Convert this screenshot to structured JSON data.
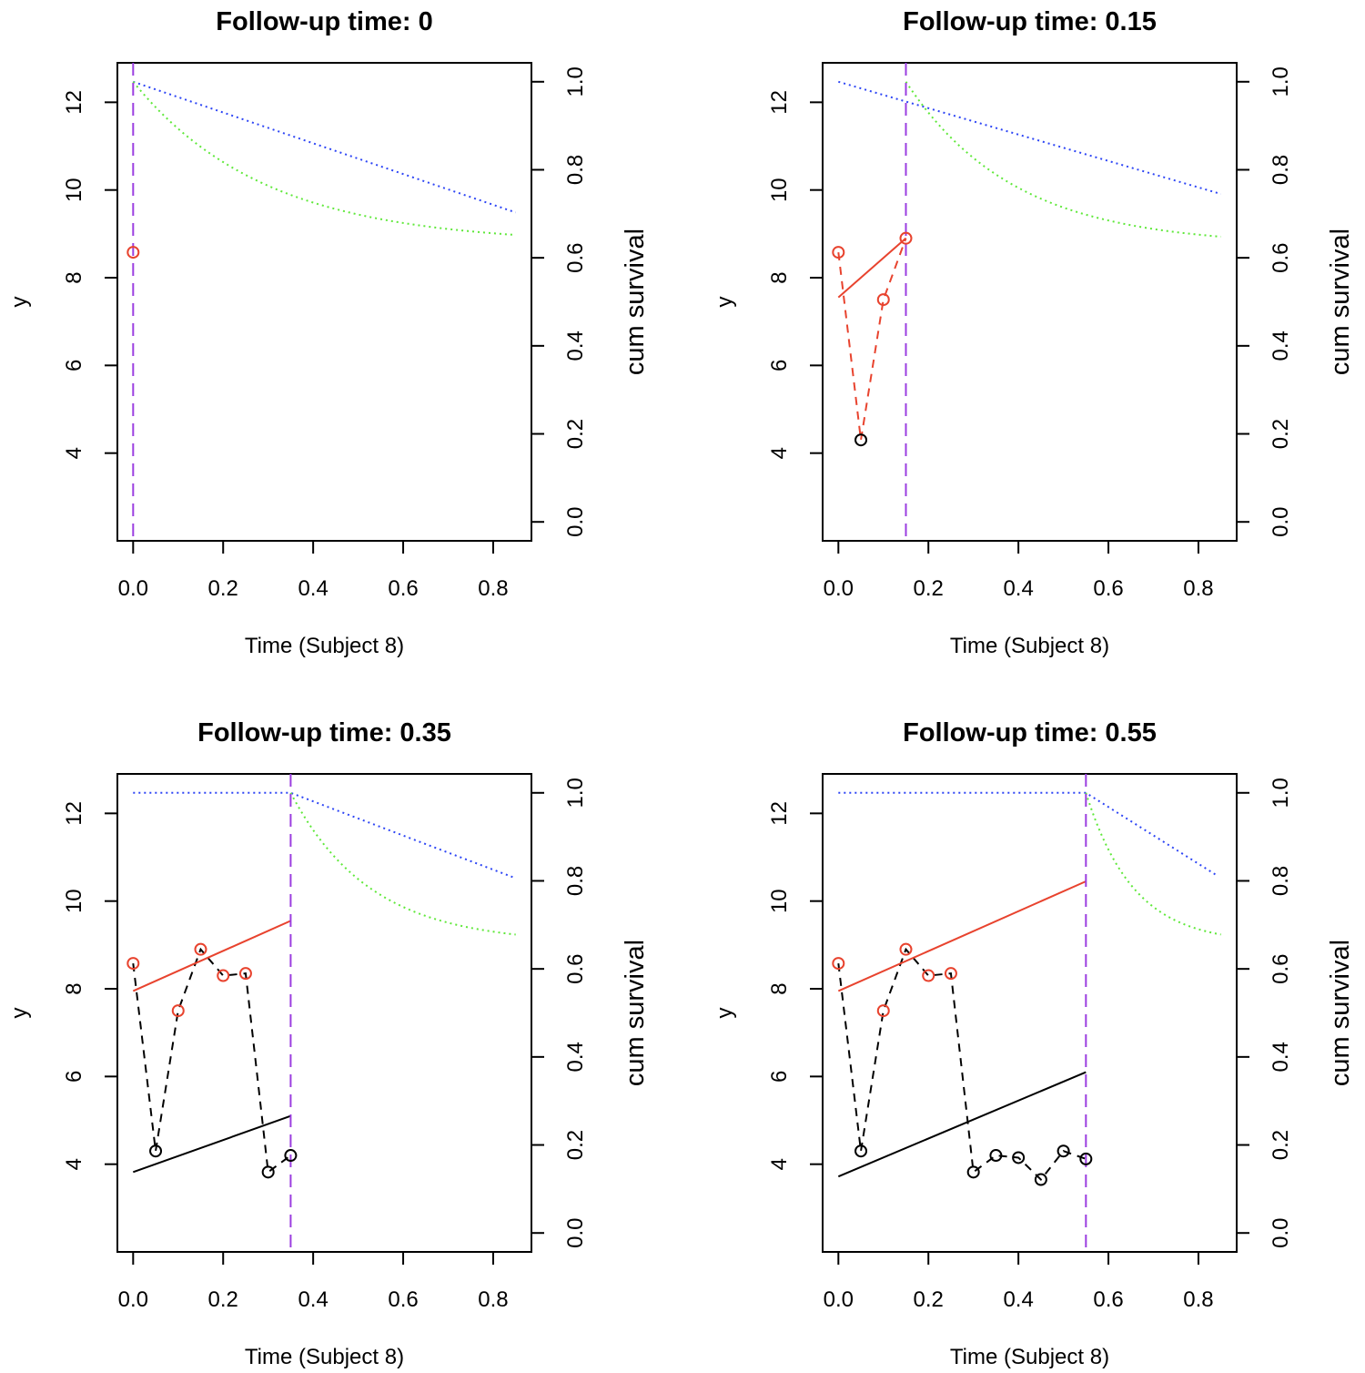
{
  "chart_data": [
    {
      "type": "line",
      "title": "Follow-up time: 0",
      "xlabel": "Time (Subject 8)",
      "ylabel": "y",
      "y2label": "cum survival",
      "xlim": [
        -0.035,
        0.885
      ],
      "ylim": [
        2.0,
        12.9
      ],
      "y2lim": [
        -0.043,
        1.043
      ],
      "xticks": [
        "0.0",
        "0.2",
        "0.4",
        "0.6",
        "0.8"
      ],
      "yticks": [
        "4",
        "6",
        "8",
        "10",
        "12"
      ],
      "y2ticks": [
        "0.0",
        "0.2",
        "0.4",
        "0.6",
        "0.8",
        "1.0"
      ],
      "followup_time": 0,
      "colors": {
        "observed": "#e8432e",
        "earlier": "#000000",
        "survival_upper": "#2d45f5",
        "survival_lower": "#5fe83a",
        "followup": "#9b3ee0"
      },
      "observed_points": {
        "x": [
          0.0
        ],
        "y": [
          8.58
        ]
      },
      "earlier_points": {
        "x": [],
        "y": []
      },
      "observed_fit": null,
      "earlier_fit": null,
      "survival_upper": {
        "x": [
          0.0,
          0.85
        ],
        "y": [
          1.0,
          0.703
        ]
      },
      "survival_lower": {
        "x": [
          0.0,
          0.85
        ],
        "y": [
          1.0,
          0.652
        ],
        "shape": "exp-decay"
      }
    },
    {
      "type": "line",
      "title": "Follow-up time: 0.15",
      "xlabel": "Time (Subject 8)",
      "ylabel": "y",
      "y2label": "cum survival",
      "xlim": [
        -0.035,
        0.885
      ],
      "ylim": [
        2.0,
        12.9
      ],
      "y2lim": [
        -0.043,
        1.043
      ],
      "xticks": [
        "0.0",
        "0.2",
        "0.4",
        "0.6",
        "0.8"
      ],
      "yticks": [
        "4",
        "6",
        "8",
        "10",
        "12"
      ],
      "y2ticks": [
        "0.0",
        "0.2",
        "0.4",
        "0.6",
        "0.8",
        "1.0"
      ],
      "followup_time": 0.15,
      "colors": {
        "observed": "#e8432e",
        "earlier": "#000000",
        "survival_upper": "#2d45f5",
        "survival_lower": "#5fe83a",
        "followup": "#9b3ee0"
      },
      "observed_points": {
        "x": [
          0.0,
          0.1,
          0.15
        ],
        "y": [
          8.58,
          7.5,
          8.9
        ]
      },
      "earlier_points": {
        "x": [
          0.05
        ],
        "y": [
          4.3
        ]
      },
      "observed_path": {
        "x": [
          0.0,
          0.05,
          0.1,
          0.15
        ],
        "y": [
          8.58,
          4.3,
          7.5,
          8.9
        ]
      },
      "observed_fit": {
        "x": [
          0.0,
          0.15
        ],
        "y": [
          7.55,
          8.9
        ]
      },
      "earlier_fit": null,
      "survival_upper": {
        "x": [
          0.0,
          0.85
        ],
        "y": [
          1.0,
          0.745
        ]
      },
      "survival_lower": {
        "x": [
          0.15,
          0.85
        ],
        "y": [
          1.0,
          0.648
        ],
        "shape": "exp-decay"
      }
    },
    {
      "type": "line",
      "title": "Follow-up time: 0.35",
      "xlabel": "Time (Subject 8)",
      "ylabel": "y",
      "y2label": "cum survival",
      "xlim": [
        -0.035,
        0.885
      ],
      "ylim": [
        2.0,
        12.9
      ],
      "y2lim": [
        -0.043,
        1.043
      ],
      "xticks": [
        "0.0",
        "0.2",
        "0.4",
        "0.6",
        "0.8"
      ],
      "yticks": [
        "4",
        "6",
        "8",
        "10",
        "12"
      ],
      "y2ticks": [
        "0.0",
        "0.2",
        "0.4",
        "0.6",
        "0.8",
        "1.0"
      ],
      "followup_time": 0.35,
      "colors": {
        "observed": "#e8432e",
        "earlier": "#000000",
        "survival_upper": "#2d45f5",
        "survival_lower": "#5fe83a",
        "followup": "#9b3ee0"
      },
      "observed_points": {
        "x": [
          0.0,
          0.1,
          0.15,
          0.2,
          0.25
        ],
        "y": [
          8.58,
          7.5,
          8.9,
          8.3,
          8.35
        ]
      },
      "earlier_points": {
        "x": [
          0.05,
          0.3,
          0.35
        ],
        "y": [
          4.3,
          3.82,
          4.2
        ]
      },
      "observed_path": {
        "x": [
          0.0,
          0.05,
          0.1,
          0.15,
          0.2,
          0.25,
          0.3,
          0.35
        ],
        "y": [
          8.58,
          4.3,
          7.5,
          8.9,
          8.3,
          8.35,
          3.82,
          4.2
        ]
      },
      "observed_fit": {
        "x": [
          0.0,
          0.35
        ],
        "y": [
          7.95,
          9.55
        ]
      },
      "earlier_fit": {
        "x": [
          0.0,
          0.35
        ],
        "y": [
          3.82,
          5.1
        ]
      },
      "survival_upper": {
        "x": [
          0.0,
          0.35,
          0.85
        ],
        "y": [
          1.0,
          1.0,
          0.806
        ]
      },
      "survival_lower": {
        "x": [
          0.35,
          0.85
        ],
        "y": [
          1.0,
          0.678
        ],
        "shape": "exp-decay"
      }
    },
    {
      "type": "line",
      "title": "Follow-up time: 0.55",
      "xlabel": "Time (Subject 8)",
      "ylabel": "y",
      "y2label": "cum survival",
      "xlim": [
        -0.035,
        0.885
      ],
      "ylim": [
        2.0,
        12.9
      ],
      "y2lim": [
        -0.043,
        1.043
      ],
      "xticks": [
        "0.0",
        "0.2",
        "0.4",
        "0.6",
        "0.8"
      ],
      "yticks": [
        "4",
        "6",
        "8",
        "10",
        "12"
      ],
      "y2ticks": [
        "0.0",
        "0.2",
        "0.4",
        "0.6",
        "0.8",
        "1.0"
      ],
      "followup_time": 0.55,
      "colors": {
        "observed": "#e8432e",
        "earlier": "#000000",
        "survival_upper": "#2d45f5",
        "survival_lower": "#5fe83a",
        "followup": "#9b3ee0"
      },
      "observed_points": {
        "x": [
          0.0,
          0.1,
          0.15,
          0.2,
          0.25
        ],
        "y": [
          8.58,
          7.5,
          8.9,
          8.3,
          8.35
        ]
      },
      "earlier_points": {
        "x": [
          0.05,
          0.3,
          0.35,
          0.4,
          0.45,
          0.5,
          0.55
        ],
        "y": [
          4.3,
          3.82,
          4.2,
          4.15,
          3.65,
          4.3,
          4.12
        ]
      },
      "observed_path": {
        "x": [
          0.0,
          0.05,
          0.1,
          0.15,
          0.2,
          0.25,
          0.3,
          0.35,
          0.4,
          0.45,
          0.5,
          0.55
        ],
        "y": [
          8.58,
          4.3,
          7.5,
          8.9,
          8.3,
          8.35,
          3.82,
          4.2,
          4.15,
          3.65,
          4.3,
          4.12
        ]
      },
      "observed_fit": {
        "x": [
          0.0,
          0.55
        ],
        "y": [
          7.95,
          10.45
        ]
      },
      "earlier_fit": {
        "x": [
          0.0,
          0.55
        ],
        "y": [
          3.72,
          6.1
        ]
      },
      "survival_upper": {
        "x": [
          0.0,
          0.55,
          0.84
        ],
        "y": [
          1.0,
          1.0,
          0.813
        ]
      },
      "survival_lower": {
        "x": [
          0.55,
          0.85
        ],
        "y": [
          1.0,
          0.678
        ],
        "shape": "exp-decay"
      }
    }
  ]
}
